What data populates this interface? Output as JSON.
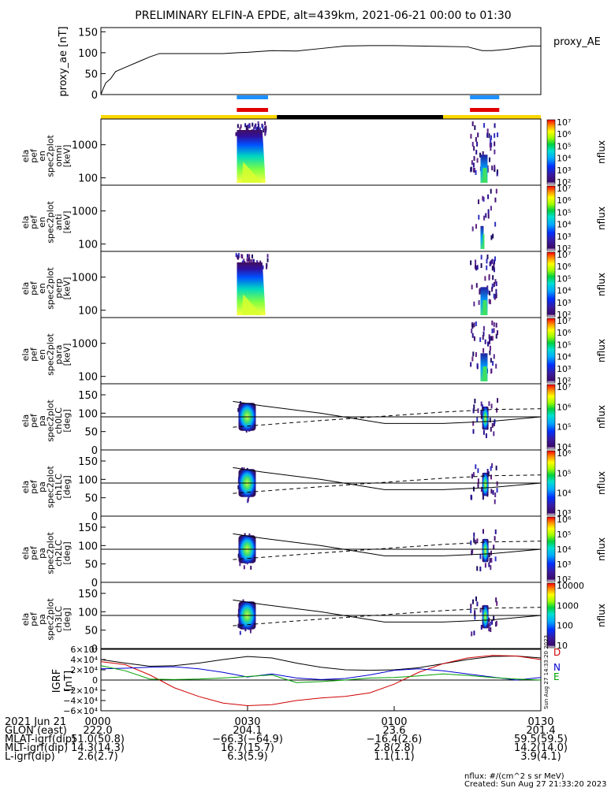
{
  "title": "PRELIMINARY ELFIN-A EPDE, alt=439km, 2021-06-21 00:00 to 01:30",
  "colors": {
    "yellow": "#ffd700",
    "black": "#000000",
    "blue": "#1e90ff",
    "red": "#e00000",
    "grf_D": "#d00000",
    "grf_N": "#0000d0",
    "grf_E": "#00a000"
  },
  "chart_data": {
    "type": "multi-panel time series / spectrogram",
    "time_range": [
      "00:00",
      "01:30"
    ],
    "x_ticks": [
      "0000",
      "0030",
      "0100",
      "0130"
    ],
    "x_tick_minutes": [
      0,
      30,
      60,
      90
    ],
    "proxy_ae": {
      "label": "proxy_ae [nT]",
      "legend": "proxy_AE",
      "ylim": [
        0,
        150
      ],
      "y_ticks": [
        "150",
        "100",
        "50",
        "0"
      ],
      "t_min": [
        0,
        0.5,
        1,
        2,
        3,
        5,
        8,
        10,
        12,
        15,
        20,
        25,
        28,
        30,
        35,
        40,
        45,
        50,
        55,
        60,
        65,
        70,
        75,
        78,
        80,
        83,
        86,
        88,
        90
      ],
      "values": [
        0,
        15,
        28,
        38,
        55,
        65,
        80,
        90,
        98,
        98,
        98,
        98,
        100,
        101,
        105,
        104,
        110,
        116,
        117,
        117,
        116,
        115,
        114,
        105,
        105,
        108,
        113,
        116,
        116
      ]
    },
    "science_zone_bars": {
      "blue_red_intervals_min": [
        [
          27.8,
          34.2
        ],
        [
          75.5,
          81.5
        ]
      ],
      "orbit_segments_min": [
        {
          "from": 0,
          "to": 36,
          "color": "yellow"
        },
        {
          "from": 36,
          "to": 70,
          "color": "black"
        },
        {
          "from": 70,
          "to": 90,
          "color": "yellow"
        }
      ]
    },
    "spectrogram_panels": [
      {
        "label": [
          "ela",
          "pef",
          "en",
          "spec2plot",
          "omni",
          "[keV]"
        ],
        "y_ticks": [
          "1000",
          "100"
        ],
        "y_range_keV": [
          60,
          6000
        ],
        "colorbar": {
          "label": "nflux",
          "ticks": [
            "10⁷",
            "10⁶",
            "10⁵",
            "10⁴",
            "10³",
            "10²"
          ]
        }
      },
      {
        "label": [
          "ela",
          "pef",
          "en",
          "spec2plot",
          "anti",
          "[keV]"
        ],
        "y_ticks": [
          "1000",
          "100"
        ],
        "y_range_keV": [
          60,
          6000
        ],
        "colorbar": {
          "label": "nflux",
          "ticks": [
            "10⁷",
            "10⁶",
            "10⁵",
            "10⁴",
            "10³",
            "10²"
          ]
        }
      },
      {
        "label": [
          "ela",
          "pef",
          "en",
          "spec2plot",
          "perp",
          "[keV]"
        ],
        "y_ticks": [
          "1000",
          "100"
        ],
        "y_range_keV": [
          60,
          6000
        ],
        "colorbar": {
          "label": "nflux",
          "ticks": [
            "10⁷",
            "10⁶",
            "10⁵",
            "10⁴",
            "10³",
            "10²"
          ]
        }
      },
      {
        "label": [
          "ela",
          "pef",
          "en",
          "spec2plot",
          "para",
          "[keV]"
        ],
        "y_ticks": [
          "1000",
          "100"
        ],
        "y_range_keV": [
          60,
          6000
        ],
        "colorbar": {
          "label": "nflux",
          "ticks": [
            "10⁷",
            "10⁶",
            "10⁵",
            "10⁴",
            "10³",
            "10²"
          ]
        }
      },
      {
        "label": [
          "ela",
          "pef",
          "pa",
          "spec2plot",
          "ch0LC",
          "[deg]"
        ],
        "y_ticks": [
          "150",
          "100",
          "50",
          "0"
        ],
        "y_range_deg": [
          0,
          180
        ],
        "colorbar": {
          "label": "nflux",
          "ticks": [
            "10⁷",
            "10⁶",
            "10⁵",
            "10⁴"
          ]
        }
      },
      {
        "label": [
          "ela",
          "pef",
          "pa",
          "spec2plot",
          "ch1LC",
          "[deg]"
        ],
        "y_ticks": [
          "150",
          "100",
          "50",
          "0"
        ],
        "y_range_deg": [
          0,
          180
        ],
        "colorbar": {
          "label": "nflux",
          "ticks": [
            "10⁶",
            "10⁵",
            "10⁴",
            "10³"
          ]
        }
      },
      {
        "label": [
          "ela",
          "pef",
          "pa",
          "spec2plot",
          "ch2LC",
          "[deg]"
        ],
        "y_ticks": [
          "150",
          "100",
          "50",
          "0"
        ],
        "y_range_deg": [
          0,
          180
        ],
        "colorbar": {
          "label": "nflux",
          "ticks": [
            "10⁶",
            "10⁵",
            "10⁴",
            "10³",
            "10²"
          ]
        }
      },
      {
        "label": [
          "ela",
          "pef",
          "pa",
          "spec2plot",
          "ch3LC",
          "[deg]"
        ],
        "y_ticks": [
          "150",
          "100",
          "50",
          "0"
        ],
        "y_range_deg": [
          0,
          180
        ],
        "colorbar": {
          "label": "nflux",
          "ticks": [
            "10000",
            "1000",
            "100",
            "10"
          ]
        }
      }
    ],
    "loss_cone_lines_deg": {
      "t_min": [
        27,
        33,
        45,
        58,
        70,
        80,
        90
      ],
      "solid": [
        132,
        120,
        100,
        72,
        72,
        78,
        90
      ],
      "dashed": [
        62,
        68,
        80,
        92,
        103,
        110,
        112
      ],
      "horizontal_90": 90
    },
    "grf": {
      "label": [
        "IGRF",
        "[nT]"
      ],
      "ylim": [
        -60000,
        60000
      ],
      "y_ticks": [
        "6×10⁴",
        "4×10⁴",
        "2×10⁴",
        "0",
        "−2×10⁴",
        "−4×10⁴",
        "−6×10⁴"
      ],
      "legend": [
        "D",
        "N",
        "E"
      ],
      "t_min": [
        0,
        5,
        10,
        15,
        20,
        25,
        30,
        35,
        40,
        45,
        50,
        55,
        60,
        65,
        70,
        75,
        80,
        85,
        90
      ],
      "D": [
        36000,
        30000,
        10000,
        -15000,
        -32000,
        -45000,
        -50000,
        -48000,
        -40000,
        -35000,
        -32000,
        -25000,
        -8000,
        15000,
        32000,
        43000,
        48000,
        47000,
        40000
      ],
      "N": [
        22000,
        23000,
        25000,
        26000,
        22000,
        15000,
        6000,
        12000,
        4000,
        1000,
        3000,
        10000,
        19000,
        22000,
        18000,
        12000,
        6000,
        0,
        5000
      ],
      "E": [
        28000,
        18000,
        2000,
        1000,
        2000,
        4000,
        7000,
        10000,
        -5000,
        -3000,
        0,
        4000,
        5000,
        8000,
        12000,
        9000,
        5000,
        2000,
        0
      ],
      "black": [
        40000,
        33000,
        27000,
        28000,
        33000,
        40000,
        46000,
        43000,
        33000,
        25000,
        20000,
        19000,
        20000,
        24000,
        32000,
        40000,
        46000,
        47000,
        43000
      ]
    },
    "orbit_table": {
      "rows": [
        {
          "label": "2021 Jun 21",
          "values": [
            "0000",
            "0030",
            "0100",
            "0130"
          ]
        },
        {
          "label": "GLON (east)",
          "values": [
            "222.0",
            "204.1",
            "23.6",
            "201.4"
          ]
        },
        {
          "label": "MLAT-igrf(dip)",
          "values": [
            "51.0(50.8)",
            "−66.3(−64.9)",
            "−16.4(2.6)",
            "59.5(59.5)"
          ]
        },
        {
          "label": "MLT-igrf(dip)",
          "values": [
            "14.3(14.3)",
            "16.7(15.7)",
            "2.8(2.8)",
            "14.2(14.0)"
          ]
        },
        {
          "label": "L-igrf(dip)",
          "values": [
            "2.6(2.7)",
            "6.3(5.9)",
            "1.1(1.1)",
            "3.9(4.1)"
          ]
        }
      ]
    },
    "footer": {
      "units": "nflux: #/(cm^2 s sr MeV)",
      "created": "Created: Sun Aug 27 21:33:20 2023",
      "side_stamp": "Sun Aug 27 14:33:20 2023"
    }
  }
}
